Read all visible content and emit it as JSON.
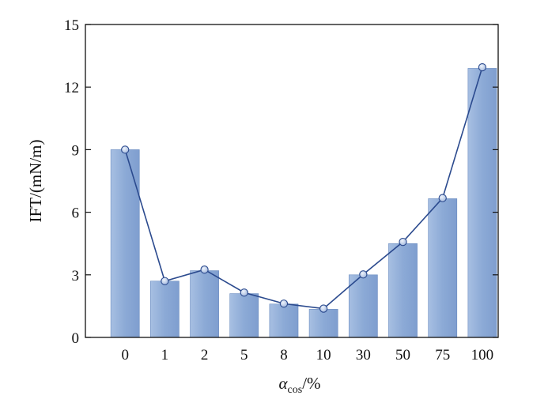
{
  "chart_data": {
    "type": "bar",
    "categories": [
      "0",
      "1",
      "2",
      "5",
      "8",
      "10",
      "30",
      "50",
      "75",
      "100"
    ],
    "series": [
      {
        "type": "bar",
        "values": [
          9.0,
          2.7,
          3.2,
          2.1,
          1.6,
          1.35,
          3.0,
          4.5,
          6.65,
          12.9
        ]
      },
      {
        "type": "line",
        "values": [
          9.0,
          2.7,
          3.25,
          2.15,
          1.62,
          1.38,
          3.02,
          4.58,
          6.68,
          12.95
        ]
      }
    ],
    "xlabel": {
      "main": "α",
      "sub": "cos",
      "suffix": "/%"
    },
    "ylabel": "IFT/(mN/m)",
    "ylim": [
      0,
      15
    ],
    "yticks": [
      0,
      3,
      6,
      9,
      12,
      15
    ],
    "grid": false,
    "colors": {
      "bar": "#8aa8d4",
      "bar_edge": "#6b8cc0",
      "line": "#2b4a8e",
      "marker": "#b9cbea"
    }
  }
}
